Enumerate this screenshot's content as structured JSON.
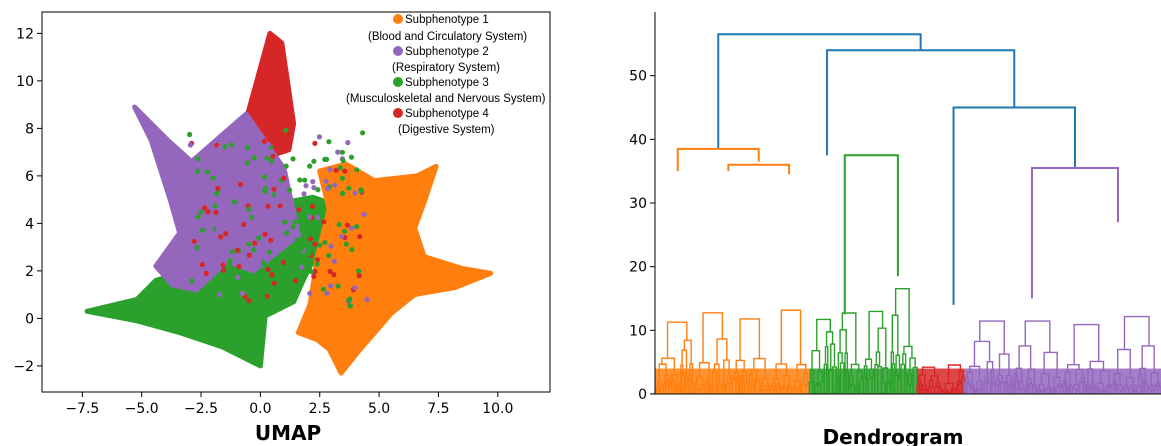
{
  "colors": {
    "subphenotype_1": "#ff7f0e",
    "subphenotype_2": "#9467bd",
    "subphenotype_3": "#2ca02c",
    "subphenotype_4": "#d62728",
    "dendrogram_top": "#1f77b4"
  },
  "chart_data": [
    {
      "type": "scatter",
      "caption": "UMAP",
      "xlim": [
        -9.2,
        12.2
      ],
      "ylim": [
        -3.1,
        12.9
      ],
      "x_ticks": [
        -7.5,
        -5.0,
        -2.5,
        0.0,
        2.5,
        5.0,
        7.5,
        10.0
      ],
      "y_ticks": [
        -2,
        0,
        2,
        4,
        6,
        8,
        10,
        12
      ],
      "x_tick_labels": [
        "−7.5",
        "−5.0",
        "−2.5",
        "0.0",
        "2.5",
        "5.0",
        "7.5",
        "10.0"
      ],
      "y_tick_labels": [
        "−2",
        "0",
        "2",
        "4",
        "6",
        "8",
        "10",
        "12"
      ],
      "grid": false,
      "legend_position": "top-right",
      "legend": [
        {
          "line1": "Subphenotype 1",
          "line2": "(Blood and Circulatory System)",
          "color_key": "subphenotype_1"
        },
        {
          "line1": "Subphenotype 2",
          "line2": "(Respiratory System)",
          "color_key": "subphenotype_2"
        },
        {
          "line1": "Subphenotype 3",
          "line2": "(Musculoskeletal and Nervous System)",
          "color_key": "subphenotype_3"
        },
        {
          "line1": "Subphenotype 4",
          "line2": "(Digestive System)",
          "color_key": "subphenotype_4"
        }
      ],
      "series": [
        {
          "name": "Subphenotype 1",
          "color_key": "subphenotype_1",
          "outline": [
            [
              2.5,
              6.2
            ],
            [
              3.6,
              6.5
            ],
            [
              4.8,
              5.8
            ],
            [
              6.6,
              6.0
            ],
            [
              7.4,
              6.4
            ],
            [
              6.9,
              4.9
            ],
            [
              6.5,
              3.8
            ],
            [
              6.9,
              2.6
            ],
            [
              8.5,
              2.1
            ],
            [
              9.7,
              1.9
            ],
            [
              8.2,
              1.3
            ],
            [
              6.5,
              1.0
            ],
            [
              5.5,
              0.2
            ],
            [
              4.9,
              -0.5
            ],
            [
              4.2,
              -1.3
            ],
            [
              3.4,
              -2.3
            ],
            [
              2.9,
              -1.3
            ],
            [
              2.4,
              -0.9
            ],
            [
              1.6,
              -0.6
            ],
            [
              2.1,
              0.6
            ],
            [
              2.4,
              2.6
            ],
            [
              2.9,
              4.6
            ]
          ]
        },
        {
          "name": "Subphenotype 2",
          "color_key": "subphenotype_2",
          "outline": [
            [
              -5.3,
              8.9
            ],
            [
              -3.9,
              7.5
            ],
            [
              -2.9,
              6.6
            ],
            [
              -0.6,
              8.6
            ],
            [
              1.0,
              6.3
            ],
            [
              1.6,
              3.5
            ],
            [
              -0.3,
              2.0
            ],
            [
              -1.4,
              2.4
            ],
            [
              -2.7,
              1.2
            ],
            [
              -3.7,
              1.4
            ],
            [
              -4.4,
              2.2
            ],
            [
              -3.4,
              3.6
            ],
            [
              -3.8,
              5.0
            ],
            [
              -4.6,
              7.5
            ]
          ]
        },
        {
          "name": "Subphenotype 3",
          "color_key": "subphenotype_3",
          "outline": [
            [
              -7.3,
              0.3
            ],
            [
              -5.2,
              0.8
            ],
            [
              -4.4,
              1.6
            ],
            [
              -3.1,
              2.0
            ],
            [
              -1.3,
              2.3
            ],
            [
              -0.2,
              3.0
            ],
            [
              0.6,
              4.8
            ],
            [
              2.2,
              5.1
            ],
            [
              3.1,
              4.8
            ],
            [
              2.6,
              3.2
            ],
            [
              1.8,
              1.6
            ],
            [
              1.4,
              0.7
            ],
            [
              0.2,
              0.1
            ],
            [
              0.0,
              -2.0
            ],
            [
              -1.6,
              -1.2
            ],
            [
              -3.4,
              -0.6
            ],
            [
              -5.2,
              -0.1
            ]
          ]
        },
        {
          "name": "Subphenotype 4",
          "color_key": "subphenotype_4",
          "outline": [
            [
              -0.7,
              8.0
            ],
            [
              0.4,
              12.0
            ],
            [
              0.9,
              11.6
            ],
            [
              1.4,
              8.2
            ],
            [
              1.2,
              7.1
            ],
            [
              0.3,
              6.8
            ],
            [
              -0.4,
              7.0
            ]
          ]
        }
      ]
    },
    {
      "type": "dendrogram",
      "caption": "Dendrogram",
      "ylim": [
        0,
        60
      ],
      "y_ticks": [
        0,
        10,
        20,
        30,
        40,
        50
      ],
      "y_tick_labels": [
        "0",
        "10",
        "20",
        "30",
        "40",
        "50"
      ],
      "links": [
        {
          "x1": 0.125,
          "x2": 0.525,
          "left_h": 38.5,
          "right_h": 54.0,
          "h": 56.5,
          "color_key": "dendrogram_top"
        },
        {
          "x1": 0.34,
          "x2": 0.71,
          "left_h": 37.5,
          "right_h": 45.0,
          "h": 54.0,
          "color_key": "dendrogram_top"
        },
        {
          "x1": 0.59,
          "x2": 0.83,
          "left_h": 14.0,
          "right_h": 35.5,
          "h": 45.0,
          "color_key": "dendrogram_top"
        },
        {
          "x1": 0.045,
          "x2": 0.205,
          "left_h": 35.0,
          "right_h": 36.5,
          "h": 38.5,
          "color_key": "subphenotype_1"
        },
        {
          "x1": 0.145,
          "x2": 0.265,
          "left_h": 35.0,
          "right_h": 34.5,
          "h": 36.0,
          "color_key": "subphenotype_1"
        },
        {
          "x1": 0.375,
          "x2": 0.48,
          "left_h": 12.5,
          "right_h": 18.5,
          "h": 37.5,
          "color_key": "subphenotype_3"
        },
        {
          "x1": 0.745,
          "x2": 0.915,
          "left_h": 15.0,
          "right_h": 27.0,
          "h": 35.5,
          "color_key": "subphenotype_2"
        }
      ],
      "leaf_bands": [
        {
          "color_key": "subphenotype_1",
          "x_start": 0.0,
          "x_end": 0.305
        },
        {
          "color_key": "subphenotype_3",
          "x_start": 0.305,
          "x_end": 0.518
        },
        {
          "color_key": "subphenotype_4",
          "x_start": 0.518,
          "x_end": 0.612
        },
        {
          "color_key": "subphenotype_2",
          "x_start": 0.612,
          "x_end": 1.0
        }
      ]
    }
  ]
}
